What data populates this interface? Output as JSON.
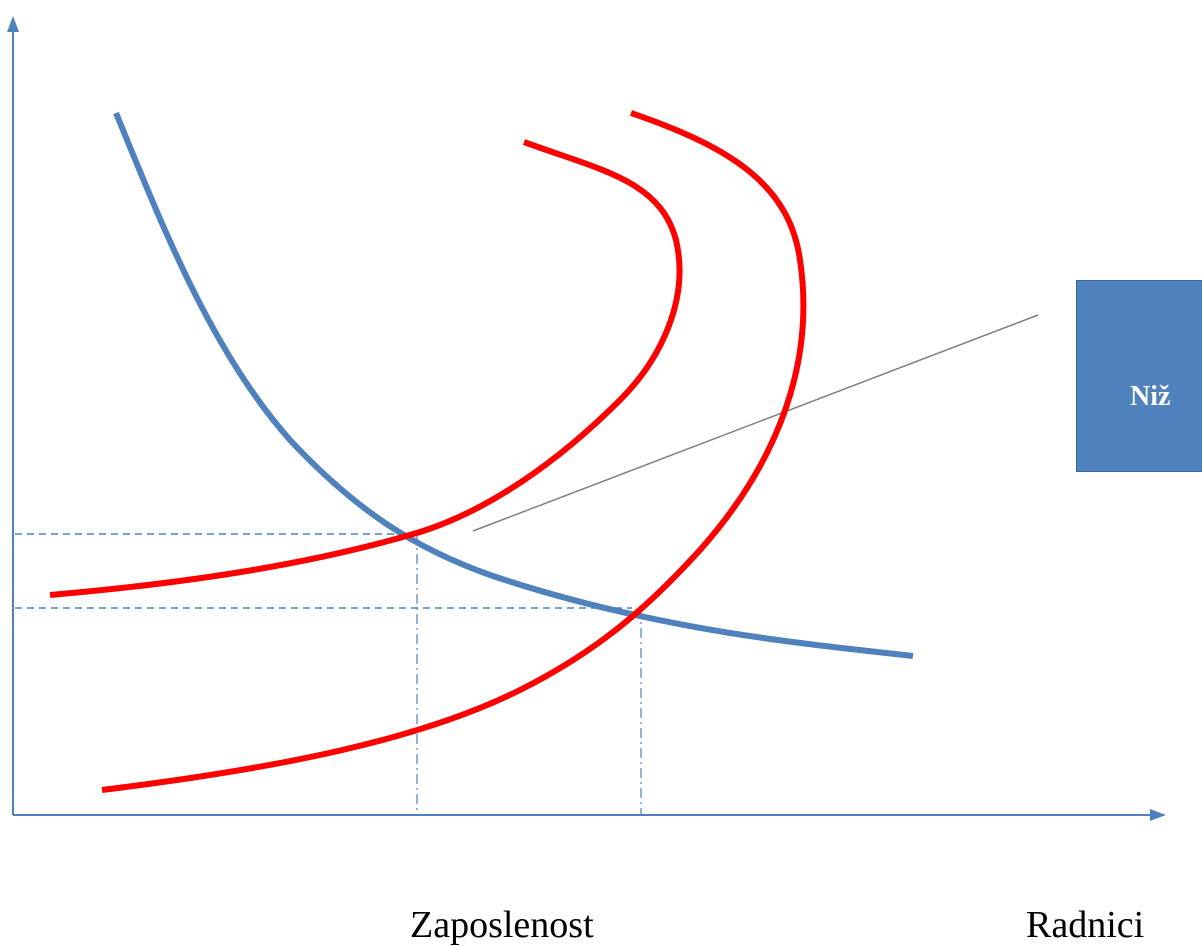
{
  "callout": {
    "text": "Niž"
  },
  "labels": {
    "employment": "Zaposlenost",
    "workers": "Radnici"
  },
  "colors": {
    "axis": "#4f81bd",
    "demand_curve": "#4f81bd",
    "supply_curves": "#ff0000",
    "callout_box": "#4f81bd",
    "callout_line": "#7f7f7f"
  }
}
